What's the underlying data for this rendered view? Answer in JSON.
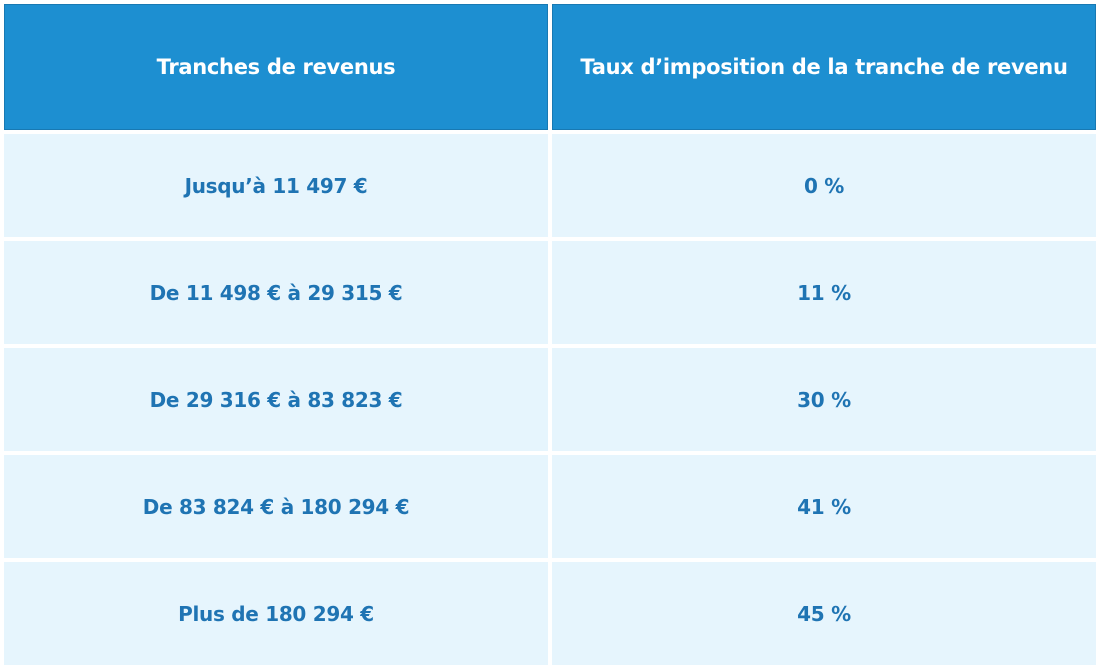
{
  "table": {
    "headers": [
      "Tranches de revenus",
      "Taux d’imposition de la tranche de revenu"
    ],
    "rows": [
      [
        "Jusqu’à 11 497 €",
        "0 %"
      ],
      [
        "De 11 498 € à 29 315 €",
        "11 %"
      ],
      [
        "De 29 316 € à 83 823 €",
        "30 %"
      ],
      [
        "De 83 824 € à 180 294 €",
        "41 %"
      ],
      [
        "Plus de 180 294 €",
        "45 %"
      ]
    ]
  },
  "colors": {
    "header_bg": "#1d8fd1",
    "header_text": "#ffffff",
    "row_bg": "#e6f5fd",
    "row_text": "#1f74b3"
  }
}
